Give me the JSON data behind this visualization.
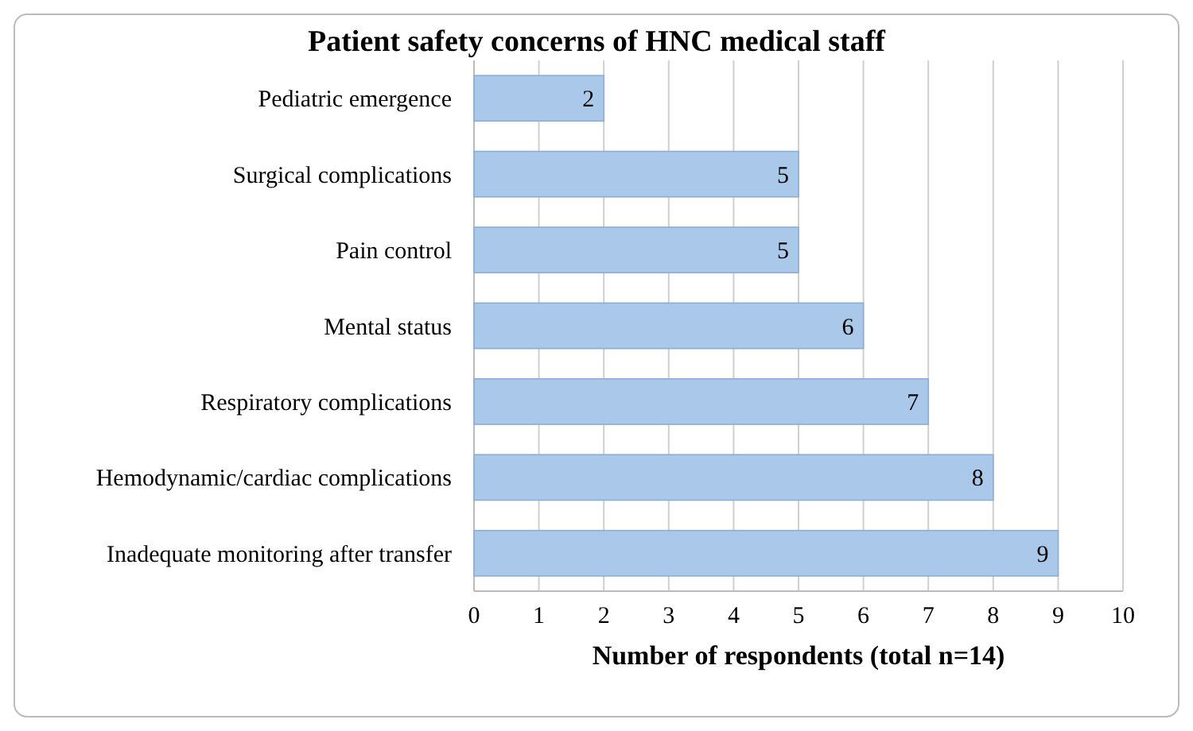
{
  "chart_data": {
    "type": "bar",
    "orientation": "horizontal",
    "title": "Patient safety concerns of HNC medical staff",
    "xlabel": "Number of respondents (total n=14)",
    "categories": [
      "Pediatric emergence",
      "Surgical complications",
      "Pain control",
      "Mental status",
      "Respiratory complications",
      "Hemodynamic/cardiac complications",
      "Inadequate monitoring after transfer"
    ],
    "values": [
      2,
      5,
      5,
      6,
      7,
      8,
      9
    ],
    "color": "#a9c8ea",
    "xlim": [
      0,
      10
    ],
    "xticks": [
      0,
      1,
      2,
      3,
      4,
      5,
      6,
      7,
      8,
      9,
      10
    ],
    "grid": "x",
    "data_labels": true
  }
}
